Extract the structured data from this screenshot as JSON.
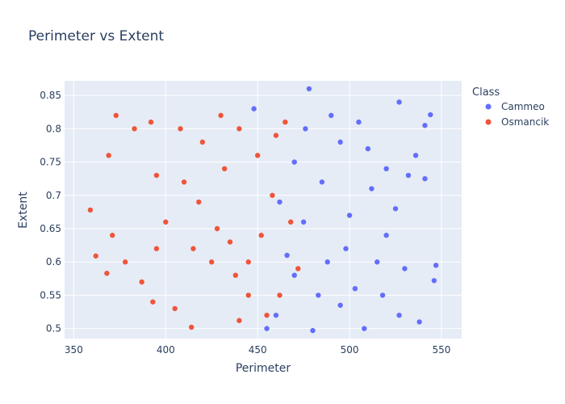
{
  "chart_data": {
    "type": "scatter",
    "title": "Perimeter vs Extent",
    "xlabel": "Perimeter",
    "ylabel": "Extent",
    "xlim": [
      345,
      561
    ],
    "ylim": [
      0.485,
      0.872
    ],
    "x_ticks": [
      350,
      400,
      450,
      500,
      550
    ],
    "y_ticks": [
      0.5,
      0.55,
      0.6,
      0.65,
      0.7,
      0.75,
      0.8,
      0.85
    ],
    "grid": true,
    "legend": {
      "title": "Class",
      "placement": "right"
    },
    "series": [
      {
        "name": "Cammeo",
        "color": "#636efa",
        "values": [
          [
            448,
            0.83
          ],
          [
            478,
            0.86
          ],
          [
            527,
            0.84
          ],
          [
            544,
            0.821
          ],
          [
            541,
            0.805
          ],
          [
            536,
            0.76
          ],
          [
            532,
            0.73
          ],
          [
            541,
            0.725
          ],
          [
            547,
            0.595
          ],
          [
            546,
            0.572
          ],
          [
            538,
            0.51
          ],
          [
            527,
            0.52
          ],
          [
            518,
            0.55
          ],
          [
            508,
            0.5
          ],
          [
            495,
            0.535
          ],
          [
            480,
            0.497
          ],
          [
            460,
            0.52
          ],
          [
            455,
            0.5
          ],
          [
            470,
            0.58
          ],
          [
            475,
            0.66
          ],
          [
            485,
            0.72
          ],
          [
            495,
            0.78
          ],
          [
            505,
            0.81
          ],
          [
            512,
            0.71
          ],
          [
            520,
            0.64
          ],
          [
            530,
            0.59
          ],
          [
            498,
            0.62
          ],
          [
            488,
            0.6
          ],
          [
            470,
            0.75
          ],
          [
            462,
            0.69
          ],
          [
            483,
            0.55
          ],
          [
            503,
            0.56
          ],
          [
            515,
            0.6
          ],
          [
            525,
            0.68
          ],
          [
            510,
            0.77
          ],
          [
            490,
            0.82
          ],
          [
            476,
            0.8
          ],
          [
            466,
            0.61
          ],
          [
            520,
            0.74
          ],
          [
            500,
            0.67
          ]
        ]
      },
      {
        "name": "Osmancik",
        "color": "#ef553b",
        "values": [
          [
            359,
            0.678
          ],
          [
            373,
            0.82
          ],
          [
            362,
            0.609
          ],
          [
            368,
            0.583
          ],
          [
            371,
            0.64
          ],
          [
            369,
            0.76
          ],
          [
            383,
            0.8
          ],
          [
            392,
            0.81
          ],
          [
            378,
            0.6
          ],
          [
            393,
            0.54
          ],
          [
            405,
            0.53
          ],
          [
            414,
            0.502
          ],
          [
            440,
            0.512
          ],
          [
            445,
            0.55
          ],
          [
            455,
            0.52
          ],
          [
            462,
            0.55
          ],
          [
            472,
            0.59
          ],
          [
            468,
            0.66
          ],
          [
            458,
            0.7
          ],
          [
            450,
            0.76
          ],
          [
            440,
            0.8
          ],
          [
            430,
            0.82
          ],
          [
            420,
            0.78
          ],
          [
            410,
            0.72
          ],
          [
            400,
            0.66
          ],
          [
            395,
            0.62
          ],
          [
            415,
            0.62
          ],
          [
            425,
            0.6
          ],
          [
            435,
            0.63
          ],
          [
            445,
            0.6
          ],
          [
            428,
            0.65
          ],
          [
            418,
            0.69
          ],
          [
            432,
            0.74
          ],
          [
            438,
            0.58
          ],
          [
            452,
            0.64
          ],
          [
            387,
            0.57
          ],
          [
            395,
            0.73
          ],
          [
            408,
            0.8
          ],
          [
            460,
            0.79
          ],
          [
            465,
            0.81
          ]
        ]
      }
    ]
  }
}
